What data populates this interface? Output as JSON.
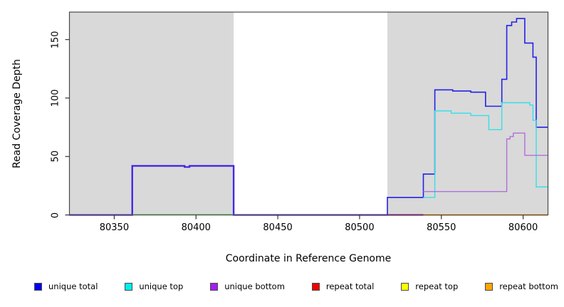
{
  "chart_data": {
    "type": "line",
    "title": "",
    "xlabel": "Coordinate in Reference Genome",
    "ylabel": "Read Coverage Depth",
    "x_ticks": [
      80350,
      80400,
      80450,
      80500,
      80550,
      80600
    ],
    "y_ticks": [
      0,
      50,
      100,
      150
    ],
    "xlim": [
      80322.6,
      80615.2
    ],
    "ylim": [
      0,
      173.5
    ],
    "grid": false,
    "legend_position": "bottom",
    "background_color": "#ffffff",
    "shaded_regions": [
      {
        "name": "segment-1",
        "x0": 80322.6,
        "x1": 80423,
        "color": "#d9d9d9"
      },
      {
        "name": "segment-2",
        "x0": 80517,
        "x1": 80615.2,
        "color": "#d9d9d9"
      }
    ],
    "series": [
      {
        "name": "unique total",
        "color": "#0000ee",
        "points": [
          [
            80322.6,
            0
          ],
          [
            80361,
            0
          ],
          [
            80361,
            42
          ],
          [
            80393,
            42
          ],
          [
            80393,
            41
          ],
          [
            80396,
            41
          ],
          [
            80396,
            42
          ],
          [
            80423,
            42
          ],
          [
            80423,
            0
          ],
          [
            80517,
            0
          ],
          [
            80517,
            15
          ],
          [
            80539,
            15
          ],
          [
            80539,
            35
          ],
          [
            80546,
            35
          ],
          [
            80546,
            107
          ],
          [
            80557,
            107
          ],
          [
            80557,
            106
          ],
          [
            80568,
            106
          ],
          [
            80568,
            105
          ],
          [
            80577,
            105
          ],
          [
            80577,
            93
          ],
          [
            80587,
            93
          ],
          [
            80587,
            116
          ],
          [
            80590,
            116
          ],
          [
            80590,
            162
          ],
          [
            80593,
            162
          ],
          [
            80593,
            165
          ],
          [
            80596,
            165
          ],
          [
            80596,
            168
          ],
          [
            80601,
            168
          ],
          [
            80601,
            147
          ],
          [
            80606,
            147
          ],
          [
            80606,
            135
          ],
          [
            80608,
            135
          ],
          [
            80608,
            75
          ],
          [
            80615.2,
            75
          ]
        ]
      },
      {
        "name": "unique top",
        "color": "#00eeee",
        "points": [
          [
            80322.6,
            0
          ],
          [
            80517,
            0
          ],
          [
            80517,
            15
          ],
          [
            80546,
            15
          ],
          [
            80546,
            89
          ],
          [
            80556,
            89
          ],
          [
            80556,
            87
          ],
          [
            80568,
            87
          ],
          [
            80568,
            85
          ],
          [
            80579,
            85
          ],
          [
            80579,
            73
          ],
          [
            80587,
            73
          ],
          [
            80587,
            96
          ],
          [
            80604,
            96
          ],
          [
            80604,
            94
          ],
          [
            80606,
            94
          ],
          [
            80606,
            81
          ],
          [
            80608,
            81
          ],
          [
            80608,
            24
          ],
          [
            80615.2,
            24
          ]
        ]
      },
      {
        "name": "unique bottom",
        "color": "#a020f0",
        "points": [
          [
            80322.6,
            0
          ],
          [
            80361,
            0
          ],
          [
            80361,
            42
          ],
          [
            80423,
            42
          ],
          [
            80423,
            0
          ],
          [
            80539,
            0
          ],
          [
            80539,
            20
          ],
          [
            80590,
            20
          ],
          [
            80590,
            65
          ],
          [
            80592,
            65
          ],
          [
            80592,
            67
          ],
          [
            80594,
            67
          ],
          [
            80594,
            70
          ],
          [
            80601,
            70
          ],
          [
            80601,
            51
          ],
          [
            80615.2,
            51
          ]
        ]
      },
      {
        "name": "repeat total",
        "color": "#ee0000",
        "points": [
          [
            80322.6,
            0
          ],
          [
            80615.2,
            0
          ]
        ]
      },
      {
        "name": "repeat top",
        "color": "#ffff00",
        "points": [
          [
            80322.6,
            0
          ],
          [
            80615.2,
            0
          ]
        ]
      },
      {
        "name": "repeat bottom",
        "color": "#ffa500",
        "points": [
          [
            80322.6,
            0
          ],
          [
            80615.2,
            0
          ]
        ]
      }
    ],
    "draw_layers": [
      {
        "name": "unique-overlap-underlay",
        "color": "#9d5ede",
        "width": 2.6,
        "points": [
          [
            80322.6,
            0
          ],
          [
            80361,
            0
          ],
          [
            80361,
            42
          ],
          [
            80393,
            42
          ],
          [
            80393,
            41
          ],
          [
            80396,
            41
          ],
          [
            80396,
            42
          ],
          [
            80423,
            42
          ],
          [
            80423,
            0
          ],
          [
            80539,
            0
          ]
        ]
      },
      {
        "name": "repeat-top-blend-line",
        "color": "#85da8c",
        "width": 1.6,
        "points": [
          [
            80361,
            0.5
          ],
          [
            80423,
            0.5
          ]
        ]
      },
      {
        "name": "repeat-total-line",
        "color": "#d23a78",
        "width": 1.6,
        "points": [
          [
            80517,
            0.3
          ],
          [
            80539,
            0.3
          ]
        ]
      },
      {
        "name": "repeat-bottom-line",
        "color": "#ffa500",
        "width": 2,
        "points": [
          [
            80539,
            0
          ],
          [
            80615.2,
            0
          ]
        ]
      },
      {
        "name": "unique-total-line",
        "color": "#2222e8",
        "width": 1.6,
        "points": [
          [
            80322.6,
            0
          ],
          [
            80361,
            0
          ],
          [
            80361,
            42
          ],
          [
            80393,
            42
          ],
          [
            80393,
            41
          ],
          [
            80396,
            41
          ],
          [
            80396,
            42
          ],
          [
            80423,
            42
          ],
          [
            80423,
            0
          ],
          [
            80517,
            0
          ],
          [
            80517,
            15
          ],
          [
            80539,
            15
          ],
          [
            80539,
            35
          ],
          [
            80546,
            35
          ],
          [
            80546,
            107
          ],
          [
            80557,
            107
          ],
          [
            80557,
            106
          ],
          [
            80568,
            106
          ],
          [
            80568,
            105
          ],
          [
            80577,
            105
          ],
          [
            80577,
            93
          ],
          [
            80587,
            93
          ],
          [
            80587,
            116
          ],
          [
            80590,
            116
          ],
          [
            80590,
            162
          ],
          [
            80593,
            162
          ],
          [
            80593,
            165
          ],
          [
            80596,
            165
          ],
          [
            80596,
            168
          ],
          [
            80601,
            168
          ],
          [
            80601,
            147
          ],
          [
            80606,
            147
          ],
          [
            80606,
            135
          ],
          [
            80608,
            135
          ],
          [
            80608,
            75
          ],
          [
            80615.2,
            75
          ]
        ]
      },
      {
        "name": "unique-top-line",
        "color": "#35dfe8",
        "width": 1.4,
        "points": [
          [
            80539,
            15
          ],
          [
            80546,
            15
          ],
          [
            80546,
            89
          ],
          [
            80556,
            89
          ],
          [
            80556,
            87
          ],
          [
            80568,
            87
          ],
          [
            80568,
            85
          ],
          [
            80579,
            85
          ],
          [
            80579,
            73
          ],
          [
            80587,
            73
          ],
          [
            80587,
            96
          ],
          [
            80604,
            96
          ],
          [
            80604,
            94
          ],
          [
            80606,
            94
          ],
          [
            80606,
            81
          ],
          [
            80608,
            81
          ],
          [
            80608,
            24
          ],
          [
            80615.2,
            24
          ]
        ]
      },
      {
        "name": "unique-bottom-line",
        "color": "#b06fd8",
        "width": 1.4,
        "points": [
          [
            80539,
            20
          ],
          [
            80590,
            20
          ],
          [
            80590,
            65
          ],
          [
            80592,
            65
          ],
          [
            80592,
            67
          ],
          [
            80594,
            67
          ],
          [
            80594,
            70
          ],
          [
            80601,
            70
          ],
          [
            80601,
            51
          ],
          [
            80615.2,
            51
          ]
        ]
      }
    ],
    "legend": [
      {
        "label": "unique total",
        "color": "#0000ee"
      },
      {
        "label": "unique top",
        "color": "#00eeee"
      },
      {
        "label": "unique bottom",
        "color": "#a020f0"
      },
      {
        "label": "repeat total",
        "color": "#ee0000"
      },
      {
        "label": "repeat top",
        "color": "#ffff00"
      },
      {
        "label": "repeat bottom",
        "color": "#ffa500"
      }
    ],
    "axis_color": "#4a4a4a"
  }
}
